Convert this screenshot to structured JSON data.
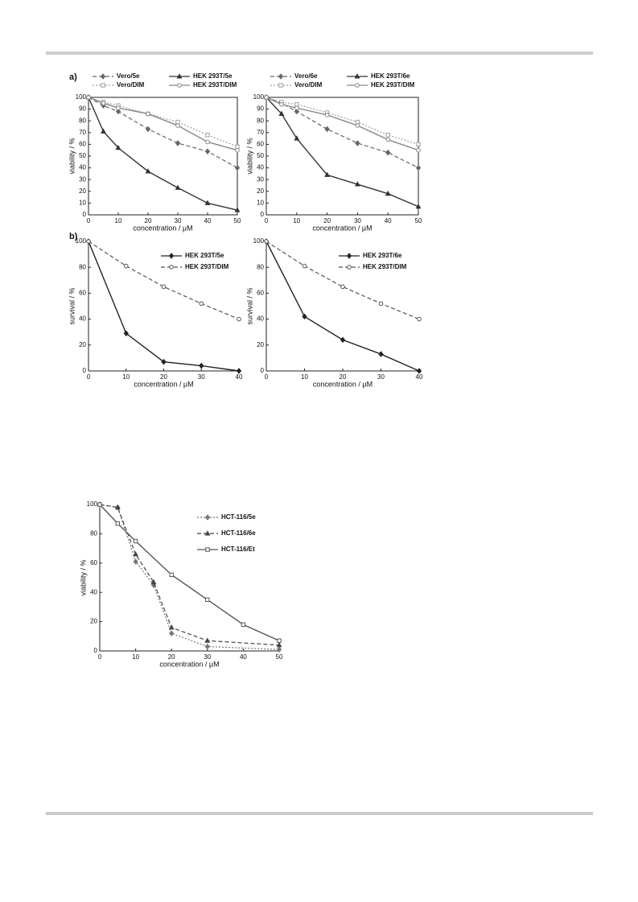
{
  "chart_data": [
    {
      "type": "line",
      "panel": "a)",
      "xlabel": "concentration / µM",
      "ylabel": "viability / %",
      "x": [
        0,
        5,
        10,
        20,
        30,
        40,
        50
      ],
      "xlim": [
        0,
        50
      ],
      "xticks": [
        0,
        10,
        20,
        30,
        40,
        50
      ],
      "ylim": [
        0,
        100
      ],
      "yticks": [
        0,
        10,
        20,
        30,
        40,
        50,
        60,
        70,
        80,
        90,
        100
      ],
      "frame": true,
      "legend": "above",
      "series": [
        {
          "name": "Vero/5e",
          "color": "#666666",
          "linestyle": "dashed",
          "marker": "diamond",
          "values": [
            100,
            93,
            88,
            73,
            61,
            54,
            40
          ]
        },
        {
          "name": "HEK 293T/5e",
          "color": "#333333",
          "linestyle": "solid",
          "marker": "triangle",
          "values": [
            100,
            71,
            57,
            37,
            23,
            10,
            4
          ]
        },
        {
          "name": "Vero/DIM",
          "color": "#a0a0a0",
          "linestyle": "dotted",
          "marker": "square",
          "values": [
            100,
            96,
            93,
            86,
            79,
            68,
            58
          ]
        },
        {
          "name": "HEK 293T/DIM",
          "color": "#888888",
          "linestyle": "solid",
          "marker": "circle",
          "values": [
            100,
            95,
            91,
            86,
            76,
            62,
            55
          ]
        }
      ]
    },
    {
      "type": "line",
      "xlabel": "concentration / µM",
      "ylabel": "viability / %",
      "x": [
        0,
        5,
        10,
        20,
        30,
        40,
        50
      ],
      "xlim": [
        0,
        50
      ],
      "xticks": [
        0,
        10,
        20,
        30,
        40,
        50
      ],
      "ylim": [
        0,
        100
      ],
      "yticks": [
        0,
        10,
        20,
        30,
        40,
        50,
        60,
        70,
        80,
        90,
        100
      ],
      "frame": true,
      "legend": "above",
      "series": [
        {
          "name": "Vero/6e",
          "color": "#666666",
          "linestyle": "dashed",
          "marker": "diamond",
          "values": [
            100,
            95,
            88,
            73,
            61,
            53,
            40
          ]
        },
        {
          "name": "HEK 293T/6e",
          "color": "#333333",
          "linestyle": "solid",
          "marker": "triangle",
          "values": [
            100,
            86,
            65,
            34,
            26,
            18,
            7
          ]
        },
        {
          "name": "Vero/DIM",
          "color": "#a0a0a0",
          "linestyle": "dotted",
          "marker": "square",
          "values": [
            100,
            96,
            94,
            87,
            79,
            68,
            60
          ]
        },
        {
          "name": "HEK 293T/DIM",
          "color": "#888888",
          "linestyle": "solid",
          "marker": "circle",
          "values": [
            100,
            94,
            91,
            85,
            76,
            64,
            55
          ]
        }
      ]
    },
    {
      "type": "line",
      "panel": "b)",
      "xlabel": "concentration / µM",
      "ylabel": "survival / %",
      "x": [
        0,
        10,
        20,
        30,
        40
      ],
      "xlim": [
        0,
        40
      ],
      "xticks": [
        0,
        10,
        20,
        30,
        40
      ],
      "ylim": [
        0,
        100
      ],
      "yticks": [
        0,
        20,
        40,
        60,
        80,
        100
      ],
      "frame": false,
      "legend": "upper right",
      "series": [
        {
          "name": "HEK 293T/5e",
          "color": "#222222",
          "linestyle": "solid",
          "marker": "diamond",
          "values": [
            100,
            29,
            7,
            4,
            0
          ]
        },
        {
          "name": "HEK 293T/DIM",
          "color": "#555555",
          "linestyle": "dashed",
          "marker": "circle",
          "values": [
            100,
            81,
            65,
            52,
            40
          ]
        }
      ]
    },
    {
      "type": "line",
      "xlabel": "concentration / µM",
      "ylabel": "survival / %",
      "x": [
        0,
        10,
        20,
        30,
        40
      ],
      "xlim": [
        0,
        40
      ],
      "xticks": [
        0,
        10,
        20,
        30,
        40
      ],
      "ylim": [
        0,
        100
      ],
      "yticks": [
        0,
        20,
        40,
        60,
        80,
        100
      ],
      "frame": false,
      "legend": "upper right",
      "series": [
        {
          "name": "HEK 293T/6e",
          "color": "#222222",
          "linestyle": "solid",
          "marker": "diamond",
          "values": [
            100,
            42,
            24,
            13,
            0
          ]
        },
        {
          "name": "HEK 293T/DIM",
          "color": "#555555",
          "linestyle": "dashed",
          "marker": "circle",
          "values": [
            100,
            81,
            65,
            52,
            40
          ]
        }
      ]
    },
    {
      "type": "line",
      "xlabel": "concentration / µM",
      "ylabel": "viability / %",
      "xlim": [
        0,
        50
      ],
      "xticks": [
        0,
        10,
        20,
        30,
        40,
        50
      ],
      "ylim": [
        0,
        100
      ],
      "yticks": [
        0,
        20,
        40,
        60,
        80,
        100
      ],
      "frame": false,
      "legend": "upper right",
      "series": [
        {
          "name": "HCT-116/5e",
          "color": "#777777",
          "linestyle": "dotted",
          "marker": "diamond",
          "x": [
            0,
            5,
            10,
            15,
            20,
            30,
            50
          ],
          "values": [
            100,
            98,
            61,
            45,
            12,
            3,
            1
          ]
        },
        {
          "name": "HCT-116/6e",
          "color": "#444444",
          "linestyle": "dashed",
          "marker": "triangle",
          "x": [
            0,
            5,
            10,
            15,
            20,
            30,
            50
          ],
          "values": [
            100,
            98,
            66,
            47,
            16,
            7,
            4
          ]
        },
        {
          "name": "HCT-116/Et",
          "color": "#555555",
          "linestyle": "solid",
          "marker": "square",
          "x": [
            0,
            5,
            10,
            20,
            30,
            40,
            50
          ],
          "values": [
            100,
            87,
            75,
            52,
            35,
            18,
            7
          ]
        }
      ]
    }
  ]
}
